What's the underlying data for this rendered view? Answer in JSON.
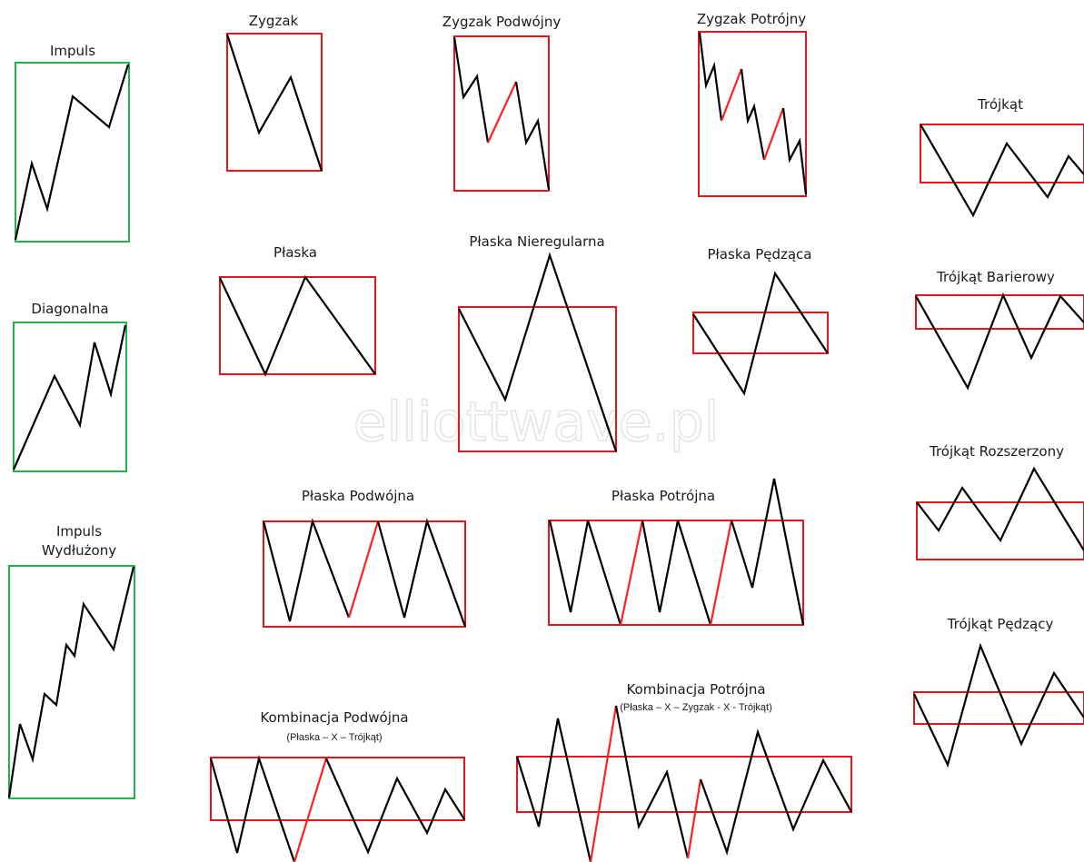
{
  "watermark": "elliottwave.pl",
  "colors": {
    "motive_box": "#22b14c",
    "corrective_box": "#e8141d",
    "wave": "#000000",
    "highlight_wave": "#ff2020"
  },
  "patterns": [
    {
      "id": "impuls",
      "title": "Impuls"
    },
    {
      "id": "diagonalna",
      "title": "Diagonalna"
    },
    {
      "id": "impuls-wydluzony",
      "title_lines": [
        "Impuls",
        "Wydłużony"
      ]
    },
    {
      "id": "zygzak",
      "title": "Zygzak"
    },
    {
      "id": "zygzak-podwojny",
      "title": "Zygzak Podwójny"
    },
    {
      "id": "zygzak-potrojny",
      "title": "Zygzak Potrójny"
    },
    {
      "id": "plaska",
      "title": "Płaska"
    },
    {
      "id": "plaska-nieregularna",
      "title": "Płaska Nieregularna"
    },
    {
      "id": "plaska-pedzaca",
      "title": "Płaska Pędząca"
    },
    {
      "id": "plaska-podwojna",
      "title": "Płaska Podwójna"
    },
    {
      "id": "plaska-potrojna",
      "title": "Płaska Potrójna"
    },
    {
      "id": "kombinacja-podwojna",
      "title": "Kombinacja Podwójna",
      "subtitle": "(Płaska – X – Trójkąt)"
    },
    {
      "id": "kombinacja-potrojna",
      "title": "Kombinacja Potrójna",
      "subtitle": "(Płaska – X – Zygzak - X - Trójkąt)"
    },
    {
      "id": "trojkat",
      "title": "Trójkąt"
    },
    {
      "id": "trojkat-barierowy",
      "title": "Trójkąt Barierowy"
    },
    {
      "id": "trojkat-rozszerzony",
      "title": "Trójkąt Rozszerzony"
    },
    {
      "id": "trojkat-pedzacy",
      "title": "Trójkąt Pędzący"
    }
  ]
}
